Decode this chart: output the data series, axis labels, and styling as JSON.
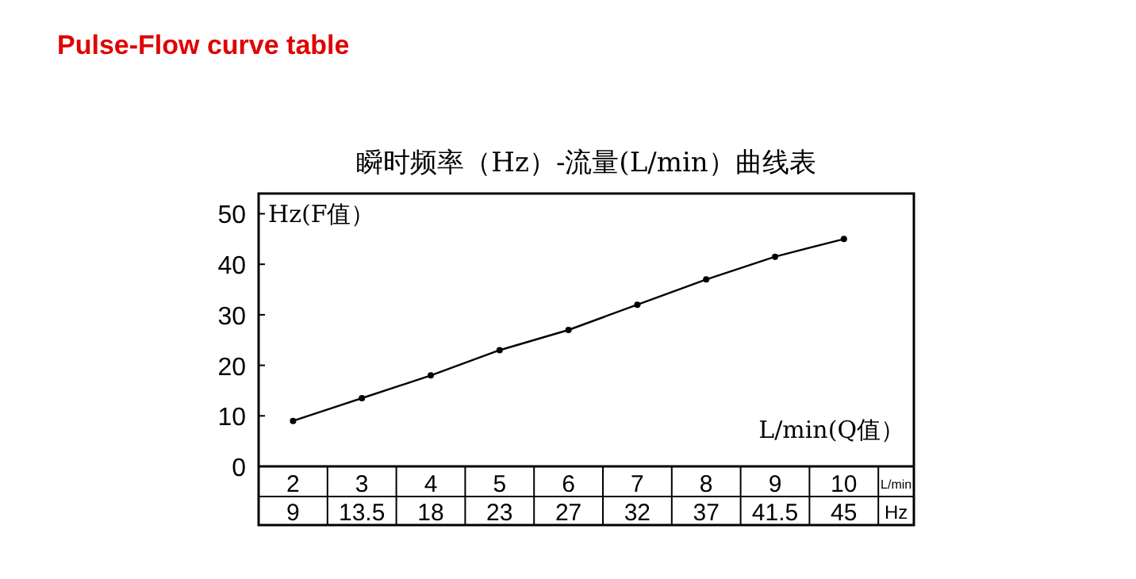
{
  "chart_data": {
    "type": "line",
    "title": "Pulse-Flow curve table",
    "subtitle": "瞬时频率（Hz）-流量(L/min）曲线表",
    "xlabel": "L/min(Q值）",
    "ylabel": "Hz(F值）",
    "categories": [
      "2",
      "3",
      "4",
      "5",
      "6",
      "7",
      "8",
      "9",
      "10"
    ],
    "values": [
      9,
      13.5,
      18,
      23,
      27,
      32,
      37,
      41.5,
      45
    ],
    "color": "#000000",
    "ylim": [
      0,
      54
    ],
    "yticks": [
      0,
      10,
      20,
      30,
      40,
      50
    ],
    "marker": "circle",
    "grid": false,
    "data_labels": true,
    "annotations": [
      "L/min",
      "Hz"
    ]
  }
}
